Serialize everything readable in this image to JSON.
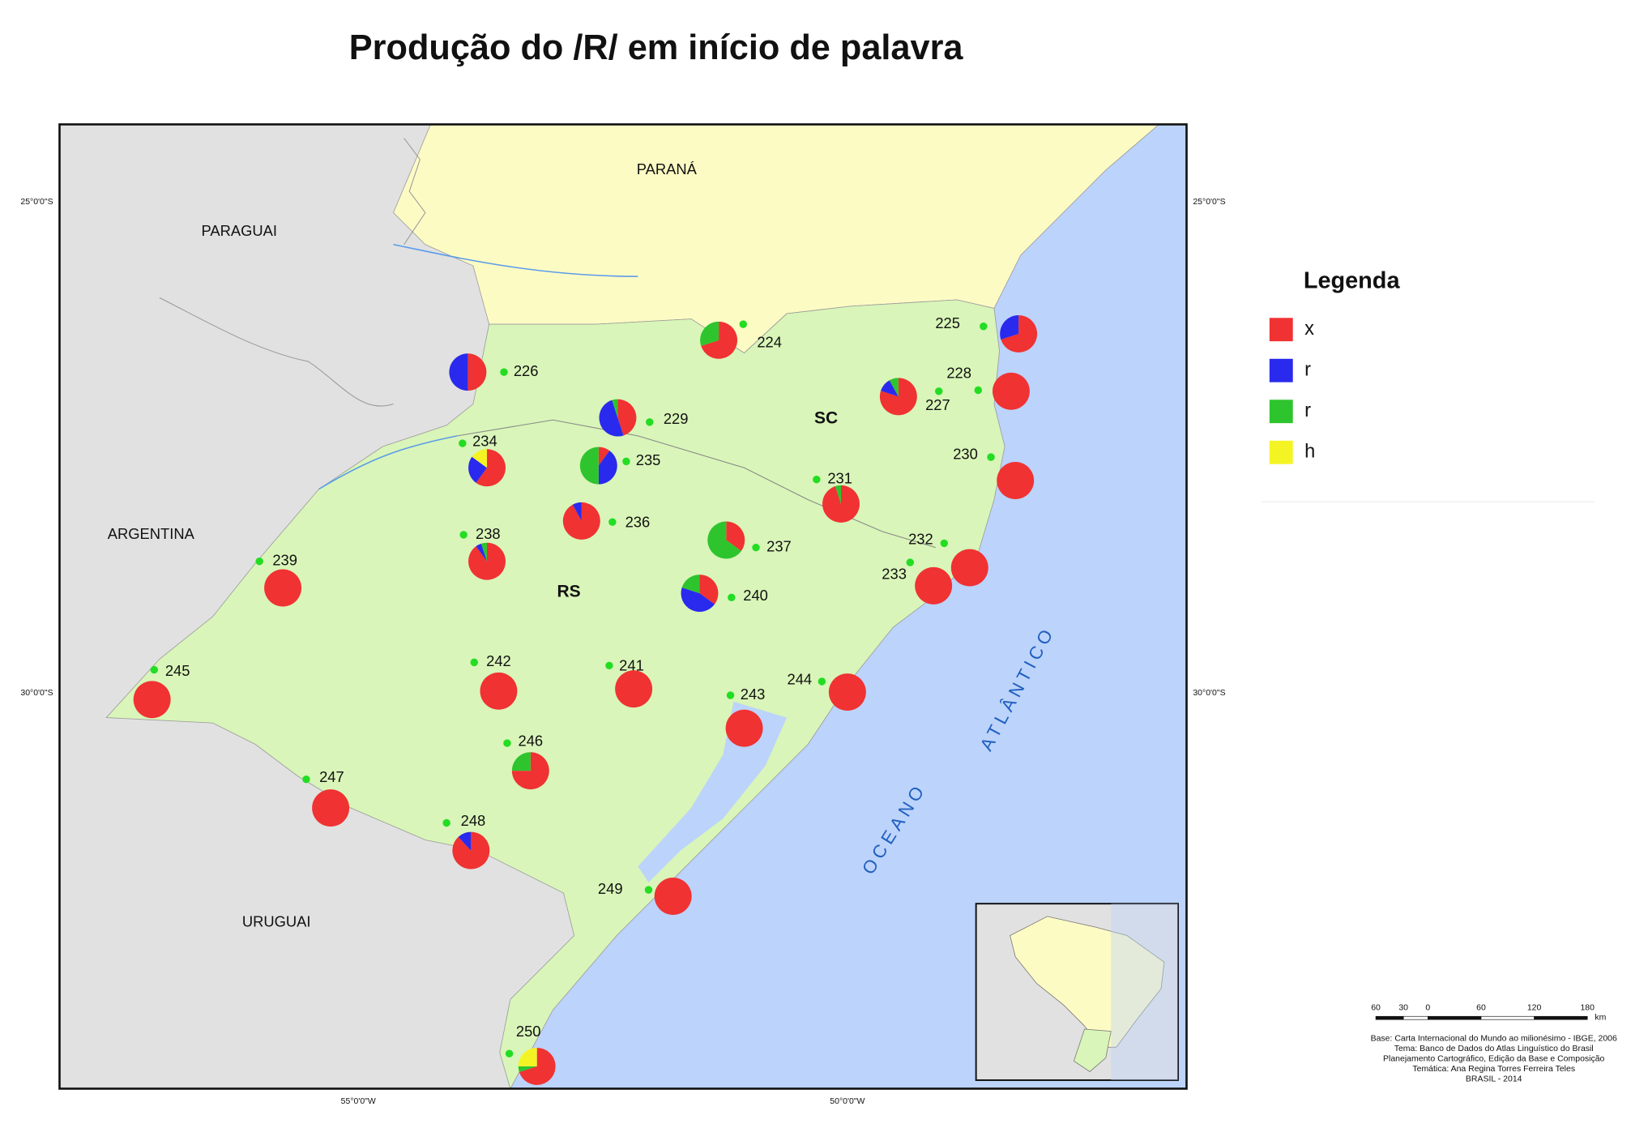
{
  "title": "Produção do /R/ em início de palavra",
  "regions": {
    "parana": "PARANÁ",
    "paraguai": "PARAGUAI",
    "argentina": "ARGENTINA",
    "uruguai": "URUGUAI",
    "sc": "SC",
    "rs": "RS",
    "oceano": "OCEANO",
    "atlantico": "ATLÂNTICO"
  },
  "legend": {
    "title": "Legenda",
    "items": [
      {
        "label": "x",
        "color": "#f03232"
      },
      {
        "label": "r",
        "color": "#2a2aee"
      },
      {
        "label": "r",
        "color": "#2ec42e"
      },
      {
        "label": "h",
        "color": "#f4f424"
      }
    ]
  },
  "points": [
    {
      "label": "224",
      "values": [
        70,
        0,
        30,
        0
      ]
    },
    {
      "label": "225",
      "values": [
        70,
        30,
        0,
        0
      ]
    },
    {
      "label": "226",
      "values": [
        50,
        50,
        0,
        0
      ]
    },
    {
      "label": "227",
      "values": [
        80,
        12,
        8,
        0
      ]
    },
    {
      "label": "228",
      "values": [
        100,
        0,
        0,
        0
      ]
    },
    {
      "label": "229",
      "values": [
        45,
        50,
        5,
        0
      ]
    },
    {
      "label": "230",
      "values": [
        100,
        0,
        0,
        0
      ]
    },
    {
      "label": "231",
      "values": [
        95,
        0,
        5,
        0
      ]
    },
    {
      "label": "232",
      "values": [
        100,
        0,
        0,
        0
      ]
    },
    {
      "label": "233",
      "values": [
        100,
        0,
        0,
        0
      ]
    },
    {
      "label": "234",
      "values": [
        60,
        25,
        0,
        15
      ]
    },
    {
      "label": "235",
      "values": [
        10,
        40,
        50,
        0
      ]
    },
    {
      "label": "236",
      "values": [
        92,
        8,
        0,
        0
      ]
    },
    {
      "label": "237",
      "values": [
        35,
        0,
        65,
        0
      ]
    },
    {
      "label": "238",
      "values": [
        90,
        5,
        5,
        0
      ]
    },
    {
      "label": "239",
      "values": [
        100,
        0,
        0,
        0
      ]
    },
    {
      "label": "240",
      "values": [
        35,
        45,
        20,
        0
      ]
    },
    {
      "label": "241",
      "values": [
        100,
        0,
        0,
        0
      ]
    },
    {
      "label": "242",
      "values": [
        100,
        0,
        0,
        0
      ]
    },
    {
      "label": "243",
      "values": [
        100,
        0,
        0,
        0
      ]
    },
    {
      "label": "244",
      "values": [
        100,
        0,
        0,
        0
      ]
    },
    {
      "label": "245",
      "values": [
        100,
        0,
        0,
        0
      ]
    },
    {
      "label": "246",
      "values": [
        75,
        0,
        25,
        0
      ]
    },
    {
      "label": "247",
      "values": [
        100,
        0,
        0,
        0
      ]
    },
    {
      "label": "248",
      "values": [
        88,
        12,
        0,
        0
      ]
    },
    {
      "label": "249",
      "values": [
        100,
        0,
        0,
        0
      ]
    },
    {
      "label": "250",
      "values": [
        70,
        0,
        5,
        25
      ]
    }
  ],
  "coordinates": {
    "lat25_left": "25°0'0\"S",
    "lat25_right": "25°0'0\"S",
    "lat30_left": "30°0'0\"S",
    "lat30_right": "30°0'0\"S",
    "lon55": "55°0'0\"W",
    "lon50": "50°0'0\"W"
  },
  "scale": {
    "ticks": [
      "60",
      "30",
      "0",
      "60",
      "120",
      "180"
    ],
    "unit": "km"
  },
  "credits": [
    "Base: Carta Internacional do Mundo ao milionésimo - IBGE, 2006",
    "Tema: Banco de Dados do Atlas Linguístico do Brasil",
    "Planejamento Cartográfico, Edição da Base e Composição",
    "Temática: Ana Regina Torres Ferreira Teles",
    "BRASIL - 2014"
  ]
}
